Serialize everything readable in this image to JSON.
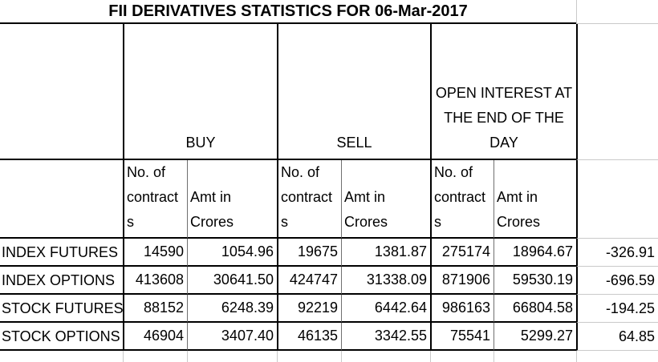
{
  "title": "FII DERIVATIVES STATISTICS FOR 06-Mar-2017",
  "columns": {
    "groups": [
      {
        "label": "BUY"
      },
      {
        "label": "SELL"
      },
      {
        "label": "OPEN INTEREST AT THE END OF THE DAY"
      }
    ],
    "sub": {
      "contracts": "No. of contracts",
      "amount": "Amt in Crores"
    }
  },
  "rows": [
    {
      "label": "INDEX FUTURES",
      "buy_contracts": "14590",
      "buy_amt": "1054.96",
      "sell_contracts": "19675",
      "sell_amt": "1381.87",
      "oi_contracts": "275174",
      "oi_amt": "18964.67",
      "net": "-326.91"
    },
    {
      "label": "INDEX OPTIONS",
      "buy_contracts": "413608",
      "buy_amt": "30641.50",
      "sell_contracts": "424747",
      "sell_amt": "31338.09",
      "oi_contracts": "871906",
      "oi_amt": "59530.19",
      "net": "-696.59"
    },
    {
      "label": "STOCK FUTURES",
      "buy_contracts": "88152",
      "buy_amt": "6248.39",
      "sell_contracts": "92219",
      "sell_amt": "6442.64",
      "oi_contracts": "986163",
      "oi_amt": "66804.58",
      "net": "-194.25"
    },
    {
      "label": "STOCK OPTIONS",
      "buy_contracts": "46904",
      "buy_amt": "3407.40",
      "sell_contracts": "46135",
      "sell_amt": "3342.55",
      "oi_contracts": "75541",
      "oi_amt": "5299.27",
      "net": "64.85"
    }
  ],
  "colors": {
    "background": "#ffffff",
    "text": "#000000",
    "table_border": "#000000",
    "sub_separator": "#6f6f6f",
    "gridline": "#c9c9c9"
  }
}
